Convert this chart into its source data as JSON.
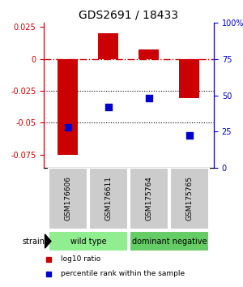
{
  "title": "GDS2691 / 18433",
  "samples": [
    "GSM176606",
    "GSM176611",
    "GSM175764",
    "GSM175765"
  ],
  "log10_ratio": [
    -0.075,
    0.02,
    0.007,
    -0.031
  ],
  "percentile_rank": [
    28,
    42,
    48,
    22
  ],
  "bar_color": "#cc0000",
  "dot_color": "#0000cc",
  "ylim_left": [
    -0.085,
    0.028
  ],
  "yticks_left": [
    -0.075,
    -0.05,
    -0.025,
    0.0,
    0.025
  ],
  "ytick_labels_left": [
    "-0.075",
    "-0.05",
    "-0.025",
    "0",
    "0.025"
  ],
  "ylim_right": [
    0,
    100
  ],
  "yticks_right": [
    0,
    25,
    50,
    75,
    100
  ],
  "ytick_labels_right": [
    "0",
    "25",
    "50",
    "75",
    "100%"
  ],
  "groups": [
    {
      "label": "wild type",
      "indices": [
        0,
        1
      ],
      "color": "#90ee90"
    },
    {
      "label": "dominant negative",
      "indices": [
        2,
        3
      ],
      "color": "#66cc66"
    }
  ],
  "strain_label": "strain",
  "legend_items": [
    {
      "color": "#cc0000",
      "label": "log10 ratio"
    },
    {
      "color": "#0000cc",
      "label": "percentile rank within the sample"
    }
  ],
  "hline_zero_color": "#cc0000",
  "hline_dotted_color": "#000000",
  "background_color": "#ffffff",
  "plot_bg_color": "#ffffff"
}
